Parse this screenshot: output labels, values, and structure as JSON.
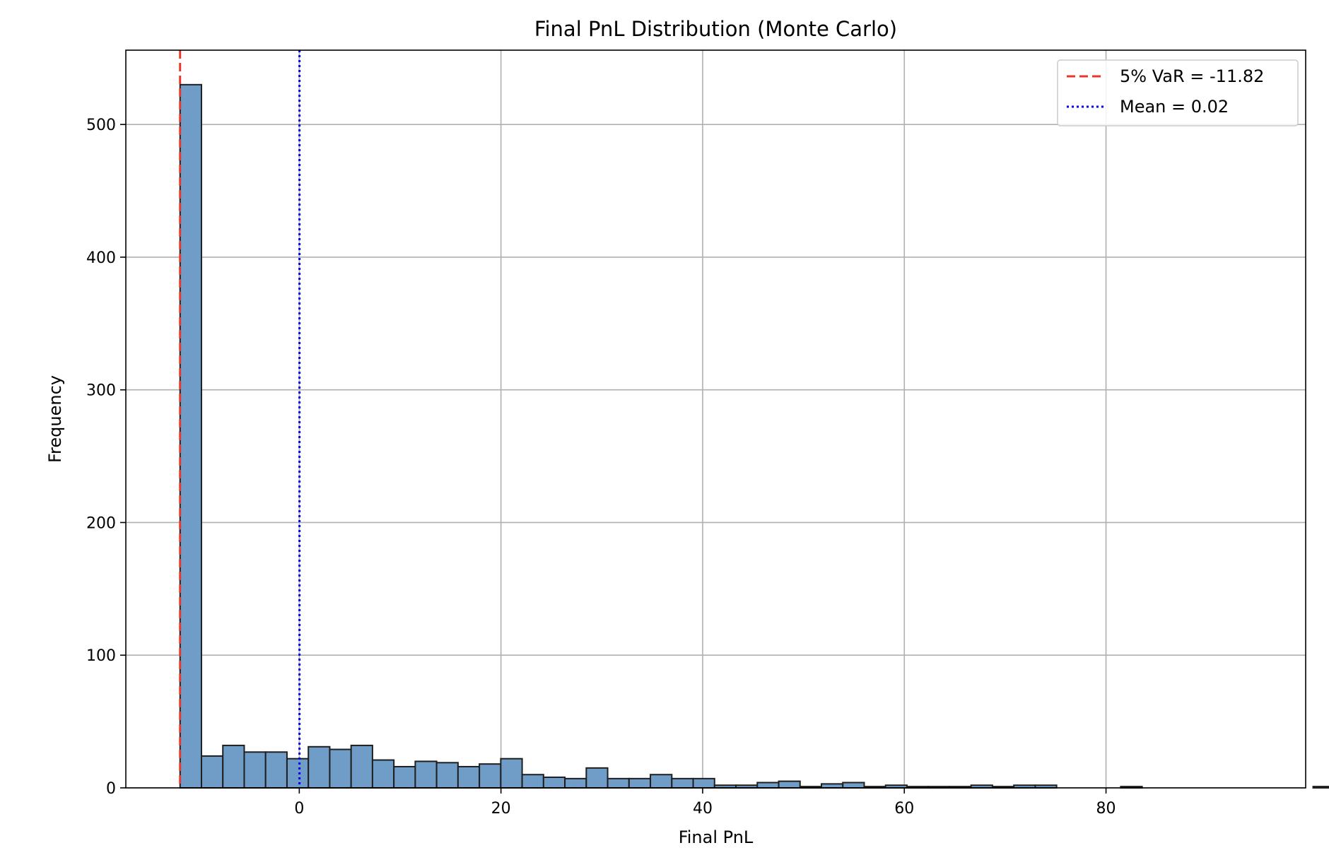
{
  "chart_data": {
    "type": "bar",
    "title": "Final PnL Distribution (Monte Carlo)",
    "xlabel": "Final PnL",
    "ylabel": "Frequency",
    "xlim": [
      -17.2,
      99.8
    ],
    "ylim": [
      0,
      556
    ],
    "x_ticks": [
      0,
      20,
      40,
      60,
      80
    ],
    "y_ticks": [
      0,
      100,
      200,
      300,
      400,
      500
    ],
    "grid": true,
    "legend_position": "top-right",
    "bar_color": "#6f9dc8",
    "bar_edge_color": "#1f1f1f",
    "bin_start": -11.82,
    "bin_width": 2.12,
    "counts": [
      530,
      24,
      32,
      27,
      27,
      22,
      31,
      29,
      32,
      21,
      16,
      20,
      19,
      16,
      18,
      22,
      10,
      8,
      7,
      15,
      7,
      7,
      10,
      7,
      7,
      2,
      2,
      4,
      5,
      1,
      3,
      4,
      1,
      2,
      1,
      1,
      1,
      2,
      1,
      2,
      2,
      0,
      0,
      0,
      1,
      0,
      0,
      0,
      0,
      0,
      0,
      0,
      0,
      1
    ],
    "reference_lines": [
      {
        "name": "5% VaR = -11.82",
        "x": -11.82,
        "color": "#e8372b",
        "style": "dashed"
      },
      {
        "name": "Mean = 0.02",
        "x": 0.02,
        "color": "#0000ee",
        "style": "dotted"
      }
    ]
  }
}
